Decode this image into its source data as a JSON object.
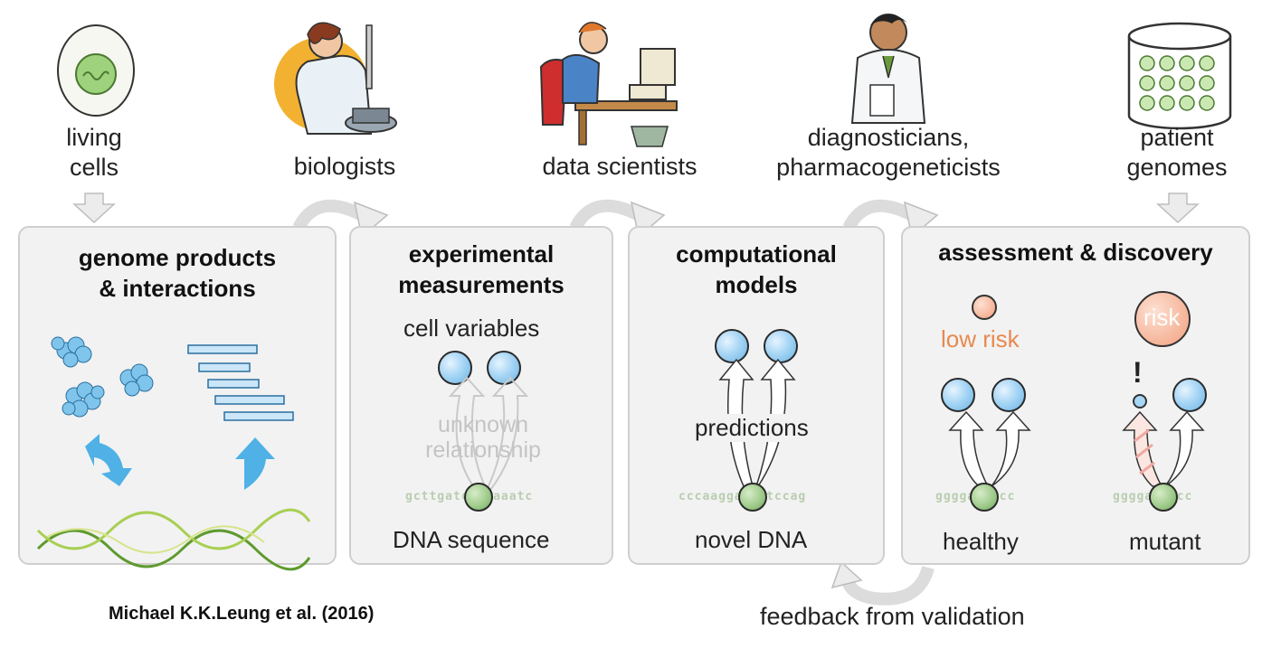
{
  "top_labels": {
    "living_cells": [
      "living",
      "cells"
    ],
    "biologists": "biologists",
    "data_scientists": "data scientists",
    "diagnosticians": [
      "diagnosticians,",
      "pharmacogeneticists"
    ],
    "patient_genomes": [
      "patient",
      "genomes"
    ]
  },
  "panels": {
    "genome": {
      "title": [
        "genome products",
        "& interactions"
      ]
    },
    "experimental": {
      "title": [
        "experimental",
        "measurements"
      ],
      "cell_variables": "cell variables",
      "unknown": [
        "unknown",
        "relationship"
      ],
      "dna_seq": "gcttgatctagaaatc",
      "dna_label": "DNA sequence"
    },
    "computational": {
      "title": [
        "computational",
        "models"
      ],
      "predictions": "predictions",
      "dna_seq": "cccaaggaacttccag",
      "dna_label": "novel DNA"
    },
    "assessment": {
      "title": "assessment & discovery",
      "low_risk": "low risk",
      "risk": "risk",
      "exclamation": "!",
      "healthy_seq": "ggggatcccc",
      "mutant_seq_left": "ggggag",
      "mutant_seq_mut": "g",
      "mutant_seq_right": "ccc",
      "healthy": "healthy",
      "mutant": "mutant"
    }
  },
  "feedback": "feedback from validation",
  "citation": "Michael K.K.Leung et al. (2016)",
  "colors": {
    "panel_bg": "#f2f2f2",
    "blue": "#7fc0ea",
    "green": "#9cc987",
    "risk": "#f2a07e",
    "risk_text": "#e8894f",
    "mutation": "#d23a22"
  }
}
